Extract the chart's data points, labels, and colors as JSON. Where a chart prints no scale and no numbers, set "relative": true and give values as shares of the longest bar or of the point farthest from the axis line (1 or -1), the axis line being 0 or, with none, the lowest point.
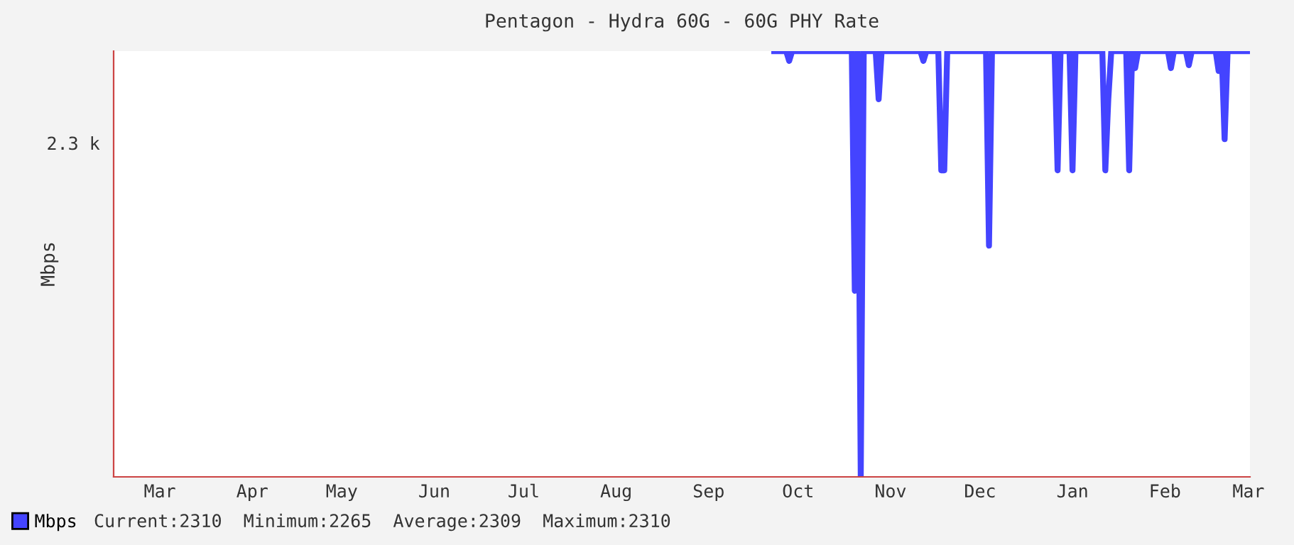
{
  "chart_data": {
    "type": "line",
    "title": "Pentagon - Hydra 60G - 60G PHY Rate",
    "ylabel": "Mbps",
    "relative": true,
    "annotations": [
      "2.3 k",
      "Current:2310  Minimum:2265  Average:2309  Maximum:2310"
    ],
    "categories": [
      null,
      null,
      null,
      null,
      null,
      null,
      null,
      null,
      null,
      null,
      null,
      null,
      null,
      null,
      null,
      "Mar",
      null,
      null,
      null,
      null,
      null,
      null,
      null,
      null,
      null,
      null,
      null,
      null,
      null,
      null,
      null,
      null,
      null,
      null,
      null,
      null,
      null,
      null,
      null,
      null,
      null,
      null,
      null,
      null,
      null,
      null,
      "Apr",
      null,
      null,
      null,
      null,
      null,
      null,
      null,
      null,
      null,
      null,
      null,
      null,
      null,
      null,
      null,
      null,
      null,
      null,
      null,
      null,
      null,
      null,
      null,
      null,
      null,
      null,
      null,
      null,
      null,
      "May",
      null,
      null,
      null,
      null,
      null,
      null,
      null,
      null,
      null,
      null,
      null,
      null,
      null,
      null,
      null,
      null,
      null,
      null,
      null,
      null,
      null,
      null,
      null,
      null,
      null,
      null,
      null,
      null,
      null,
      null,
      "Jun",
      null,
      null,
      null,
      null,
      null,
      null,
      null,
      null,
      null,
      null,
      null,
      null,
      null,
      null,
      null,
      null,
      null,
      null,
      null,
      null,
      null,
      null,
      null,
      null,
      null,
      null,
      null,
      null,
      null,
      "Jul",
      null,
      null,
      null,
      null,
      null,
      null,
      null,
      null,
      null,
      null,
      null,
      null,
      null,
      null,
      null,
      null,
      null,
      null,
      null,
      null,
      null,
      null,
      null,
      null,
      null,
      null,
      null,
      null,
      null,
      null,
      "Aug",
      null,
      null,
      null,
      null,
      null,
      null,
      null,
      null,
      null,
      null,
      null,
      null,
      null,
      null,
      null,
      null,
      null,
      null,
      null,
      null,
      null,
      null,
      null,
      null,
      null,
      null,
      null,
      null,
      null,
      null,
      "Sep",
      null,
      null,
      null,
      null,
      null,
      null,
      null,
      null,
      null,
      null,
      null,
      null,
      null,
      null,
      null,
      null,
      null,
      null,
      null,
      null,
      null,
      null,
      null,
      null,
      null,
      null,
      null,
      null,
      null,
      "Oct",
      null,
      null,
      null,
      null,
      null,
      null,
      null,
      null,
      null,
      null,
      null,
      null,
      null,
      null,
      null,
      null,
      null,
      null,
      null,
      null,
      null,
      null,
      null,
      null,
      null,
      null,
      null,
      null,
      null,
      null,
      "Nov",
      null,
      null,
      null,
      null,
      null,
      null,
      null,
      null,
      null,
      null,
      null,
      null,
      null,
      null,
      null,
      null,
      null,
      null,
      null,
      null,
      null,
      null,
      null,
      null,
      null,
      null,
      null,
      null,
      null,
      "Dec",
      null,
      null,
      null,
      null,
      null,
      null,
      null,
      null,
      null,
      null,
      null,
      null,
      null,
      null,
      null,
      null,
      null,
      null,
      null,
      null,
      null,
      null,
      null,
      null,
      null,
      null,
      null,
      null,
      null,
      null,
      "Jan",
      null,
      null,
      null,
      null,
      null,
      null,
      null,
      null,
      null,
      null,
      null,
      null,
      null,
      null,
      null,
      null,
      null,
      null,
      null,
      null,
      null,
      null,
      null,
      null,
      null,
      null,
      null,
      null,
      null,
      null,
      "Feb",
      null,
      null,
      null,
      null,
      null,
      null,
      null,
      null,
      null,
      null,
      null,
      null,
      null,
      null,
      null,
      null,
      null,
      null,
      null,
      null,
      null,
      null,
      null,
      null,
      null,
      null,
      null,
      "Mar"
    ],
    "legend": "bottom",
    "line_style": "solid",
    "marker": "none",
    "series": [
      {
        "name": "Mbps",
        "color": "#4444ff",
        "values": [
          null,
          null,
          null,
          null,
          null,
          null,
          null,
          null,
          null,
          null,
          null,
          null,
          null,
          null,
          null,
          null,
          null,
          null,
          null,
          null,
          null,
          null,
          null,
          null,
          null,
          null,
          null,
          null,
          null,
          null,
          null,
          null,
          null,
          null,
          null,
          null,
          null,
          null,
          null,
          null,
          null,
          null,
          null,
          null,
          null,
          null,
          null,
          null,
          null,
          null,
          null,
          null,
          null,
          null,
          null,
          null,
          null,
          null,
          null,
          null,
          null,
          null,
          null,
          null,
          null,
          null,
          null,
          null,
          null,
          null,
          null,
          null,
          null,
          null,
          null,
          null,
          null,
          null,
          null,
          null,
          null,
          null,
          null,
          null,
          null,
          null,
          null,
          null,
          null,
          null,
          null,
          null,
          null,
          null,
          null,
          null,
          null,
          null,
          null,
          null,
          null,
          null,
          null,
          null,
          null,
          null,
          null,
          null,
          null,
          null,
          null,
          null,
          null,
          null,
          null,
          null,
          null,
          null,
          null,
          null,
          null,
          null,
          null,
          null,
          null,
          null,
          null,
          null,
          null,
          null,
          null,
          null,
          null,
          null,
          null,
          null,
          null,
          null,
          null,
          null,
          null,
          null,
          null,
          null,
          null,
          null,
          null,
          null,
          null,
          null,
          null,
          null,
          null,
          null,
          null,
          null,
          null,
          null,
          null,
          null,
          null,
          null,
          null,
          null,
          null,
          null,
          null,
          null,
          null,
          null,
          null,
          null,
          null,
          null,
          null,
          null,
          null,
          null,
          null,
          null,
          null,
          null,
          null,
          null,
          null,
          null,
          null,
          null,
          null,
          null,
          null,
          null,
          null,
          null,
          null,
          null,
          null,
          null,
          null,
          null,
          null,
          null,
          null,
          null,
          null,
          null,
          null,
          null,
          null,
          null,
          null,
          null,
          null,
          null,
          null,
          null,
          null,
          null,
          null,
          null,
          null,
          1,
          1,
          1,
          1,
          1,
          0.977,
          1,
          1,
          1,
          1,
          1,
          1,
          1,
          1,
          1,
          1,
          1,
          1,
          1,
          1,
          1,
          1,
          1,
          1,
          1,
          1,
          1,
          0.437,
          1,
          0,
          1,
          1,
          1,
          1,
          1,
          0.887,
          1,
          1,
          1,
          1,
          1,
          1,
          1,
          1,
          1,
          1,
          1,
          1,
          1,
          1,
          0.977,
          1,
          1,
          1,
          1,
          1,
          0.72,
          0.72,
          1,
          1,
          1,
          1,
          1,
          1,
          1,
          1,
          1,
          1,
          1,
          1,
          1,
          1,
          0.543,
          1,
          1,
          1,
          1,
          1,
          1,
          1,
          1,
          1,
          1,
          1,
          1,
          1,
          1,
          1,
          1,
          1,
          1,
          1,
          1,
          1,
          1,
          0.72,
          1,
          1,
          1,
          1,
          0.72,
          1,
          1,
          1,
          1,
          1,
          1,
          1,
          1,
          1,
          1,
          0.72,
          0.887,
          1,
          1,
          1,
          1,
          1,
          1,
          0.72,
          1,
          0.96,
          1,
          1,
          1,
          1,
          1,
          1,
          1,
          1,
          1,
          1,
          1,
          0.96,
          1,
          1,
          1,
          1,
          1,
          0.967,
          1,
          1,
          1,
          1,
          1,
          1,
          1,
          1,
          1,
          0.953,
          1,
          0.793,
          1,
          1,
          1,
          1,
          1,
          1,
          1,
          1
        ]
      }
    ]
  }
}
